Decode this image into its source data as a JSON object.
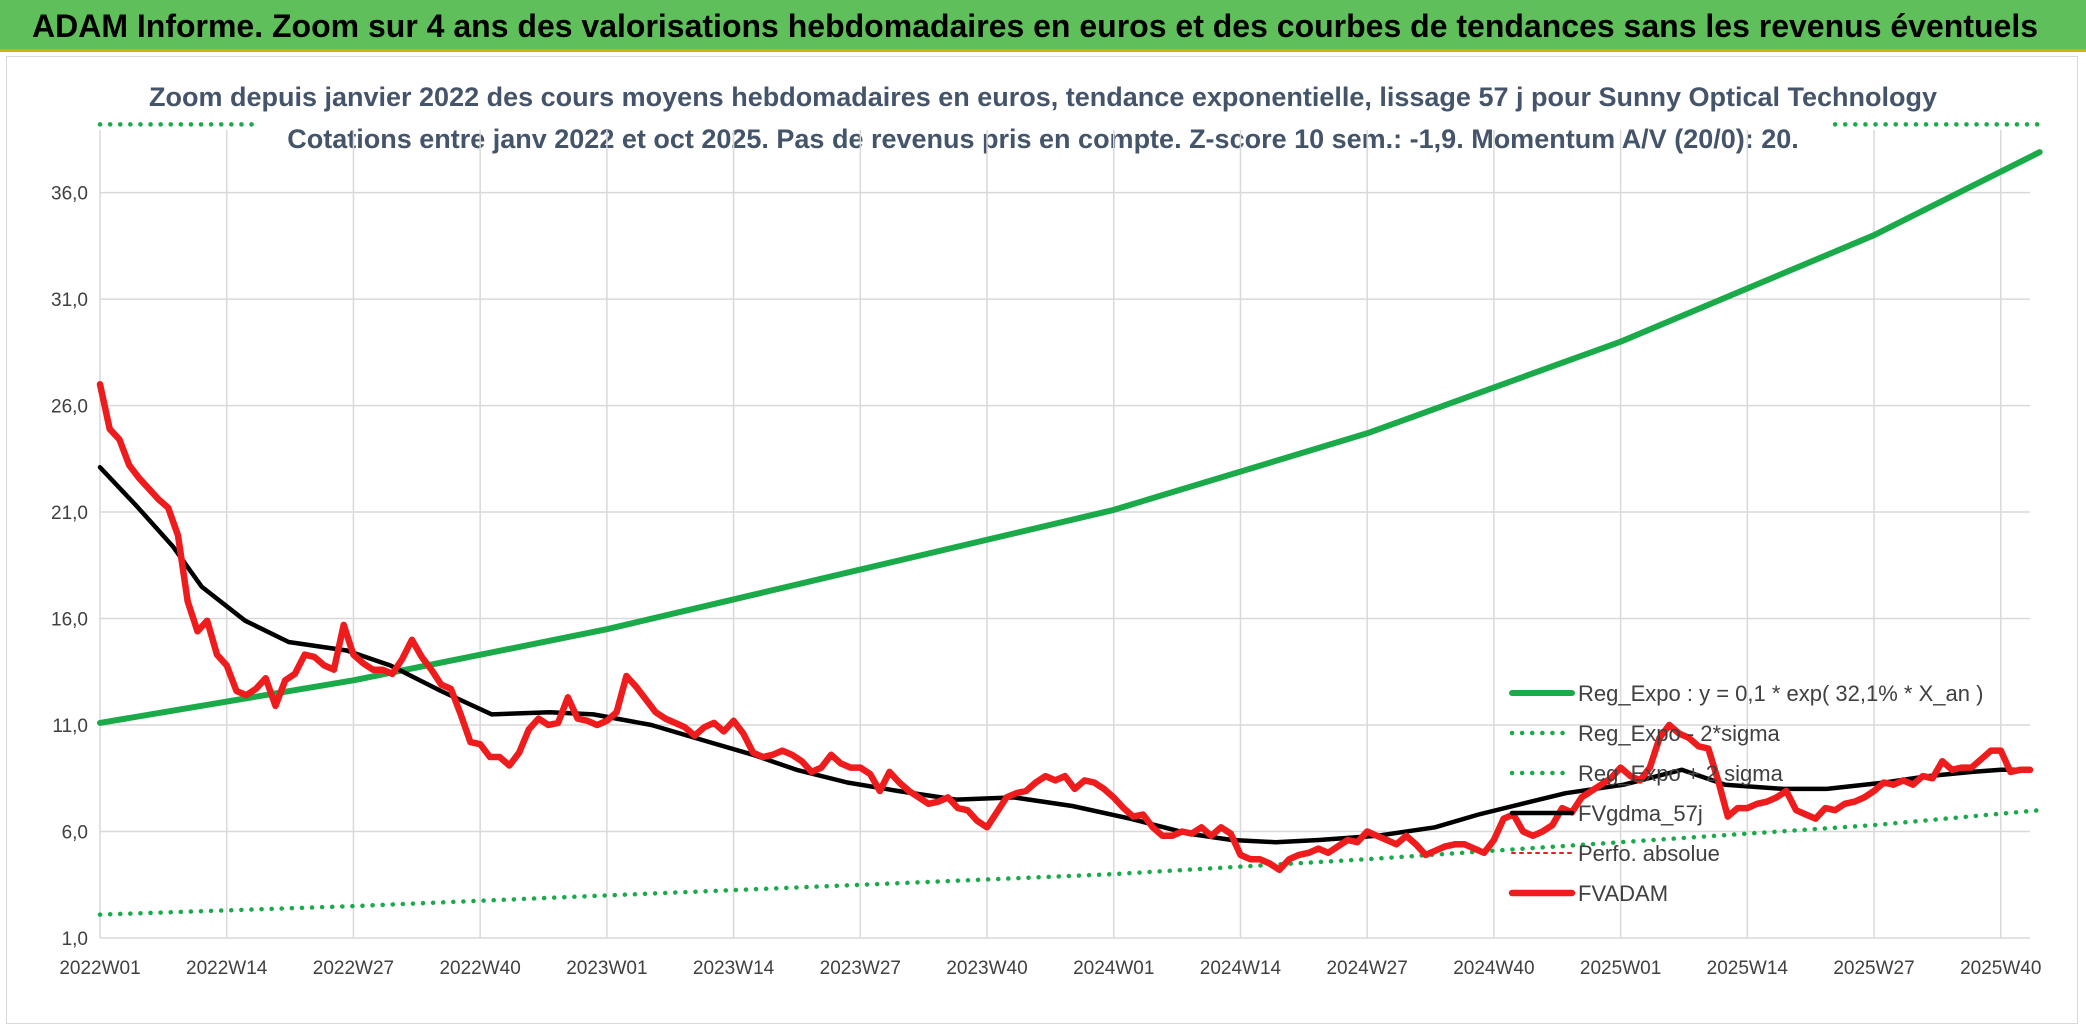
{
  "banner": {
    "title": "ADAM Informe. Zoom sur 4 ans des valorisations hebdomadaires en euros et des courbes de tendances sans les revenus éventuels"
  },
  "colors": {
    "banner": "#5fbf5a",
    "regression": "#1aaa4a",
    "sigma": "#1aaa4a",
    "moving_average": "#000000",
    "price": "#ee1c1c",
    "grid": "#d9d9d9"
  },
  "chart_data": {
    "type": "line",
    "title": "Zoom depuis janvier 2022 des cours moyens hebdomadaires en euros, tendance exponentielle, lissage 57 j pour Sunny Optical Technology",
    "subtitle": "Cotations entre janv 2022 et oct 2025. Pas de revenus pris en compte. Z-score 10 sem.: -1,9. Momentum A/V (20/0): 20.",
    "xlabel": "",
    "ylabel": "",
    "x_ticks": [
      "2022W01",
      "2022W14",
      "2022W27",
      "2022W40",
      "2023W01",
      "2023W14",
      "2023W27",
      "2023W40",
      "2024W01",
      "2024W14",
      "2024W27",
      "2024W40",
      "2025W01",
      "2025W14",
      "2025W27",
      "2025W40"
    ],
    "x_tick_index": [
      0,
      13,
      26,
      39,
      52,
      65,
      78,
      91,
      104,
      117,
      130,
      143,
      156,
      169,
      182,
      195
    ],
    "x_count": 199,
    "y_ticks": [
      "1,0",
      "6,0",
      "11,0",
      "16,0",
      "21,0",
      "26,0",
      "31,0",
      "36,0"
    ],
    "ylim": [
      1,
      38
    ],
    "grid": true,
    "legend_position": "right",
    "series": [
      {
        "name": "Reg_Expo : y = 0,1 * exp( 32,1% *  X_an )",
        "style": "solid-thick",
        "color": "#1aaa4a",
        "points": [
          [
            0,
            11.1
          ],
          [
            26,
            13.1
          ],
          [
            52,
            15.5
          ],
          [
            78,
            18.3
          ],
          [
            104,
            21.1
          ],
          [
            130,
            24.7
          ],
          [
            156,
            29.0
          ],
          [
            182,
            34.0
          ],
          [
            199,
            37.9
          ]
        ]
      },
      {
        "name": "Reg_Expo - 2*sigma",
        "style": "dotted",
        "color": "#1aaa4a",
        "points": [
          [
            0,
            2.1
          ],
          [
            26,
            2.5
          ],
          [
            52,
            3.0
          ],
          [
            78,
            3.5
          ],
          [
            104,
            4.0
          ],
          [
            130,
            4.7
          ],
          [
            156,
            5.5
          ],
          [
            182,
            6.3
          ],
          [
            199,
            7.0
          ]
        ]
      },
      {
        "name": "Reg_Expo + 2 sigma",
        "style": "dotted",
        "color": "#1aaa4a",
        "points": [
          [
            0,
            39.2
          ],
          [
            16,
            39.2
          ]
        ],
        "points_right": [
          [
            178,
            39.2
          ],
          [
            199,
            39.2
          ]
        ]
      },
      {
        "name": "FVgdma_57j",
        "style": "solid-black",
        "color": "#000000",
        "points": [
          [
            0,
            23.1
          ],
          [
            5,
            21.3
          ],
          [
            10,
            19.4
          ],
          [
            14,
            17.5
          ],
          [
            20,
            15.9
          ],
          [
            26,
            14.9
          ],
          [
            34,
            14.5
          ],
          [
            40,
            13.8
          ],
          [
            47,
            12.6
          ],
          [
            54,
            11.5
          ],
          [
            62,
            11.6
          ],
          [
            68,
            11.5
          ],
          [
            76,
            11.0
          ],
          [
            84,
            10.2
          ],
          [
            90,
            9.6
          ],
          [
            96,
            8.9
          ],
          [
            103,
            8.3
          ],
          [
            110,
            7.9
          ],
          [
            118,
            7.5
          ],
          [
            126,
            7.6
          ],
          [
            134,
            7.2
          ],
          [
            142,
            6.6
          ],
          [
            150,
            5.9
          ],
          [
            156,
            5.6
          ],
          [
            162,
            5.5
          ],
          [
            168,
            5.6
          ],
          [
            176,
            5.8
          ],
          [
            184,
            6.2
          ],
          [
            190,
            6.8
          ],
          [
            196,
            7.3
          ],
          [
            202,
            7.8
          ],
          [
            210,
            8.2
          ],
          [
            218,
            8.9
          ],
          [
            224,
            8.2
          ],
          [
            232,
            8.0
          ],
          [
            238,
            8.0
          ],
          [
            246,
            8.3
          ],
          [
            252,
            8.6
          ],
          [
            258,
            8.8
          ],
          [
            262,
            8.9
          ],
          [
            266,
            8.9
          ]
        ]
      },
      {
        "name": "Perfo. absolue",
        "style": "none",
        "color": "#ee1c1c",
        "points": []
      },
      {
        "name": "FVADAM",
        "style": "solid-red",
        "color": "#ee1c1c",
        "points": [
          [
            0,
            27.0
          ],
          [
            1,
            24.9
          ],
          [
            2,
            24.4
          ],
          [
            3,
            23.2
          ],
          [
            4,
            22.6
          ],
          [
            5,
            22.1
          ],
          [
            6,
            21.6
          ],
          [
            7,
            21.2
          ],
          [
            8,
            19.9
          ],
          [
            9,
            16.8
          ],
          [
            10,
            15.4
          ],
          [
            11,
            15.9
          ],
          [
            12,
            14.3
          ],
          [
            13,
            13.8
          ],
          [
            14,
            12.6
          ],
          [
            15,
            12.4
          ],
          [
            16,
            12.7
          ],
          [
            17,
            13.2
          ],
          [
            18,
            11.9
          ],
          [
            19,
            13.1
          ],
          [
            20,
            13.4
          ],
          [
            21,
            14.3
          ],
          [
            22,
            14.2
          ],
          [
            23,
            13.8
          ],
          [
            24,
            13.6
          ],
          [
            25,
            15.7
          ],
          [
            26,
            14.3
          ],
          [
            27,
            13.9
          ],
          [
            28,
            13.6
          ],
          [
            29,
            13.6
          ],
          [
            30,
            13.4
          ],
          [
            31,
            14.1
          ],
          [
            32,
            15.0
          ],
          [
            33,
            14.2
          ],
          [
            34,
            13.6
          ],
          [
            35,
            12.9
          ],
          [
            36,
            12.7
          ],
          [
            37,
            11.5
          ],
          [
            38,
            10.2
          ],
          [
            39,
            10.1
          ],
          [
            40,
            9.5
          ],
          [
            41,
            9.5
          ],
          [
            42,
            9.1
          ],
          [
            43,
            9.7
          ],
          [
            44,
            10.8
          ],
          [
            45,
            11.3
          ],
          [
            46,
            11.0
          ],
          [
            47,
            11.1
          ],
          [
            48,
            12.3
          ],
          [
            49,
            11.3
          ],
          [
            50,
            11.2
          ],
          [
            51,
            11.0
          ],
          [
            52,
            11.2
          ],
          [
            53,
            11.6
          ],
          [
            54,
            13.3
          ],
          [
            55,
            12.8
          ],
          [
            56,
            12.2
          ],
          [
            57,
            11.6
          ],
          [
            58,
            11.3
          ],
          [
            59,
            11.1
          ],
          [
            60,
            10.9
          ],
          [
            61,
            10.5
          ],
          [
            62,
            10.9
          ],
          [
            63,
            11.1
          ],
          [
            64,
            10.7
          ],
          [
            65,
            11.2
          ],
          [
            66,
            10.6
          ],
          [
            67,
            9.7
          ],
          [
            68,
            9.5
          ],
          [
            69,
            9.6
          ],
          [
            70,
            9.8
          ],
          [
            71,
            9.6
          ],
          [
            72,
            9.3
          ],
          [
            73,
            8.8
          ],
          [
            74,
            9.0
          ],
          [
            75,
            9.6
          ],
          [
            76,
            9.2
          ],
          [
            77,
            9.0
          ],
          [
            78,
            9.0
          ],
          [
            79,
            8.7
          ],
          [
            80,
            7.9
          ],
          [
            81,
            8.8
          ],
          [
            82,
            8.3
          ],
          [
            83,
            7.9
          ],
          [
            84,
            7.6
          ],
          [
            85,
            7.3
          ],
          [
            86,
            7.4
          ],
          [
            87,
            7.6
          ],
          [
            88,
            7.1
          ],
          [
            89,
            7.0
          ],
          [
            90,
            6.5
          ],
          [
            91,
            6.2
          ],
          [
            92,
            6.9
          ],
          [
            93,
            7.6
          ],
          [
            94,
            7.8
          ],
          [
            95,
            7.9
          ],
          [
            96,
            8.3
          ],
          [
            97,
            8.6
          ],
          [
            98,
            8.4
          ],
          [
            99,
            8.6
          ],
          [
            100,
            8.0
          ],
          [
            101,
            8.4
          ],
          [
            102,
            8.3
          ],
          [
            103,
            8.0
          ],
          [
            104,
            7.6
          ],
          [
            105,
            7.1
          ],
          [
            106,
            6.7
          ],
          [
            107,
            6.8
          ],
          [
            108,
            6.2
          ],
          [
            109,
            5.8
          ],
          [
            110,
            5.8
          ],
          [
            111,
            6.0
          ],
          [
            112,
            5.9
          ],
          [
            113,
            6.2
          ],
          [
            114,
            5.8
          ],
          [
            115,
            6.2
          ],
          [
            116,
            5.9
          ],
          [
            117,
            4.9
          ],
          [
            118,
            4.7
          ],
          [
            119,
            4.7
          ],
          [
            120,
            4.5
          ],
          [
            121,
            4.2
          ],
          [
            122,
            4.7
          ],
          [
            123,
            4.9
          ],
          [
            124,
            5.0
          ],
          [
            125,
            5.2
          ],
          [
            126,
            5.0
          ],
          [
            127,
            5.3
          ],
          [
            128,
            5.6
          ],
          [
            129,
            5.5
          ],
          [
            130,
            6.0
          ],
          [
            131,
            5.8
          ],
          [
            132,
            5.6
          ],
          [
            133,
            5.4
          ],
          [
            134,
            5.8
          ],
          [
            135,
            5.4
          ],
          [
            136,
            4.9
          ],
          [
            137,
            5.1
          ],
          [
            138,
            5.3
          ],
          [
            139,
            5.4
          ],
          [
            140,
            5.4
          ],
          [
            141,
            5.2
          ],
          [
            142,
            5.0
          ],
          [
            143,
            5.6
          ],
          [
            144,
            6.6
          ],
          [
            145,
            6.8
          ],
          [
            146,
            6.0
          ],
          [
            147,
            5.8
          ],
          [
            148,
            6.0
          ],
          [
            149,
            6.3
          ],
          [
            150,
            7.1
          ],
          [
            151,
            6.9
          ],
          [
            152,
            7.6
          ],
          [
            153,
            7.9
          ],
          [
            154,
            8.2
          ],
          [
            155,
            8.5
          ],
          [
            156,
            9.0
          ],
          [
            157,
            8.6
          ],
          [
            158,
            8.4
          ],
          [
            159,
            9.0
          ],
          [
            160,
            10.4
          ],
          [
            161,
            11.0
          ],
          [
            162,
            10.6
          ],
          [
            163,
            10.4
          ],
          [
            164,
            10.0
          ],
          [
            165,
            9.9
          ],
          [
            166,
            8.4
          ],
          [
            167,
            6.7
          ],
          [
            168,
            7.1
          ],
          [
            169,
            7.1
          ],
          [
            170,
            7.3
          ],
          [
            171,
            7.4
          ],
          [
            172,
            7.6
          ],
          [
            173,
            7.9
          ],
          [
            174,
            7.0
          ],
          [
            175,
            6.8
          ],
          [
            176,
            6.6
          ],
          [
            177,
            7.1
          ],
          [
            178,
            7.0
          ],
          [
            179,
            7.3
          ],
          [
            180,
            7.4
          ],
          [
            181,
            7.6
          ],
          [
            182,
            7.9
          ],
          [
            183,
            8.3
          ],
          [
            184,
            8.2
          ],
          [
            185,
            8.4
          ],
          [
            186,
            8.2
          ],
          [
            187,
            8.6
          ],
          [
            188,
            8.5
          ],
          [
            189,
            9.3
          ],
          [
            190,
            8.9
          ],
          [
            191,
            9.0
          ],
          [
            192,
            9.0
          ],
          [
            193,
            9.4
          ],
          [
            194,
            9.8
          ],
          [
            195,
            9.8
          ],
          [
            196,
            8.8
          ],
          [
            197,
            8.9
          ],
          [
            198,
            8.9
          ]
        ]
      }
    ]
  }
}
